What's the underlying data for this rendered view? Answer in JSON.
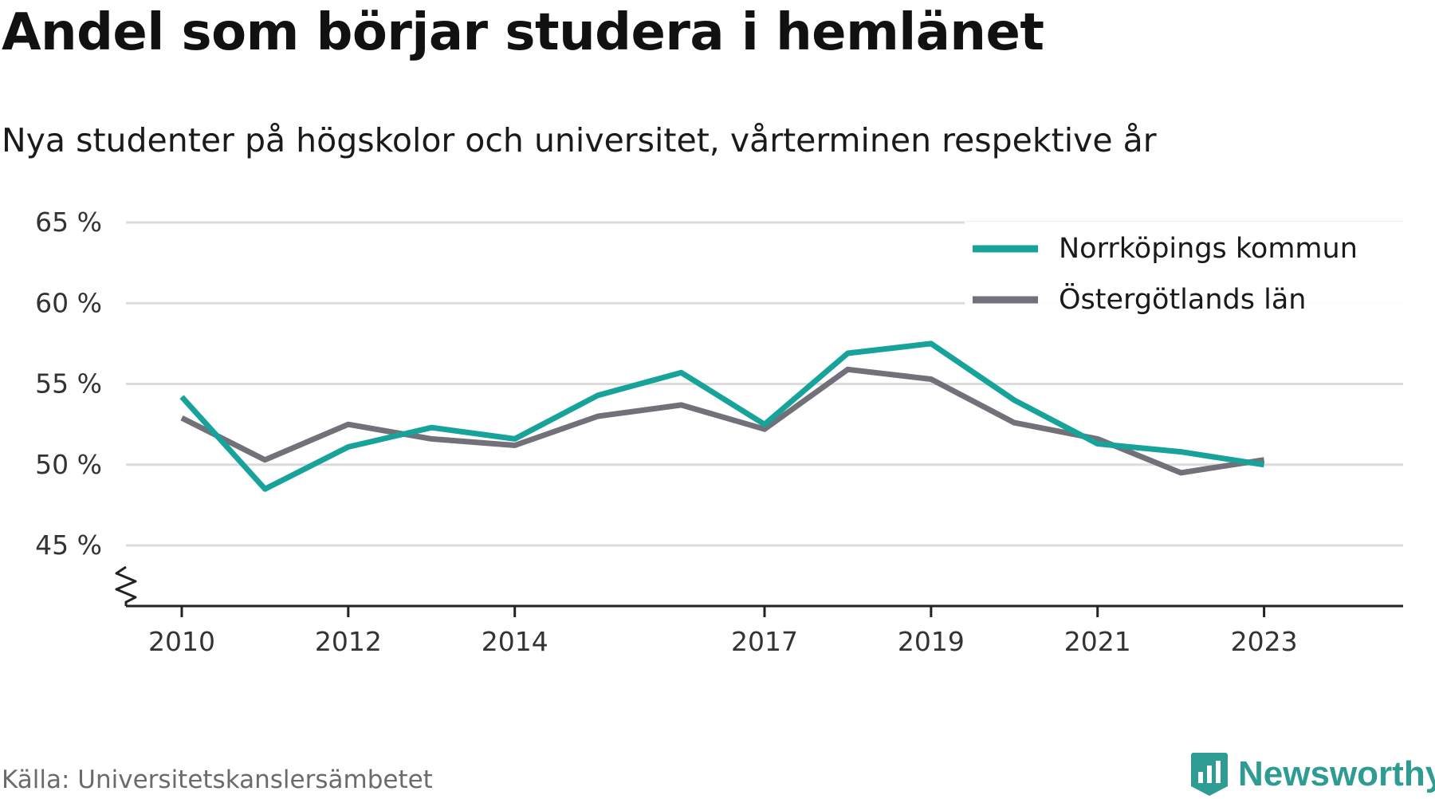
{
  "title": "Andel som börjar studera i hemlänet",
  "subtitle": "Nya studenter på högskolor och universitet, vårterminen respektive år",
  "source": "Källa: Universitetskanslersämbetet",
  "brand": {
    "name": "Newsworthy",
    "icon": "newsworthy-logo-icon",
    "color": "#2f9c94"
  },
  "chart_data": {
    "type": "line",
    "x": [
      2010,
      2011,
      2012,
      2013,
      2014,
      2015,
      2016,
      2017,
      2018,
      2019,
      2020,
      2021,
      2022,
      2023
    ],
    "x_tick_values": [
      2010,
      2012,
      2014,
      2017,
      2019,
      2021,
      2023
    ],
    "x_tick_labels": [
      "2010",
      "2012",
      "2014",
      "2017",
      "2019",
      "2021",
      "2023"
    ],
    "y_tick_values": [
      45,
      50,
      55,
      60,
      65
    ],
    "y_tick_labels": [
      "45 %",
      "50 %",
      "55 %",
      "60 %",
      "65 %"
    ],
    "ylim": [
      41.25,
      65
    ],
    "y_axis_break": true,
    "grid": true,
    "legend_position": "top-right",
    "series": [
      {
        "name": "Norrköpings kommun",
        "color": "#17a39a",
        "values": [
          54.2,
          48.5,
          51.1,
          52.3,
          51.6,
          54.3,
          55.7,
          52.5,
          56.9,
          57.5,
          54.0,
          51.3,
          50.8,
          50.0
        ]
      },
      {
        "name": "Östergötlands län",
        "color": "#727179",
        "values": [
          52.9,
          50.3,
          52.5,
          51.6,
          51.2,
          53.0,
          53.7,
          52.2,
          55.9,
          55.3,
          52.6,
          51.6,
          49.5,
          50.3
        ]
      }
    ]
  }
}
